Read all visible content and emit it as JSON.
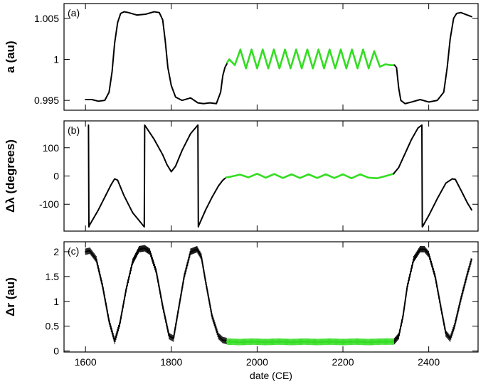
{
  "colors": {
    "main": "#000000",
    "highlight": "#33dd22"
  },
  "chart_data": [
    {
      "type": "line",
      "panel_label": "(a)",
      "ylabel": "a (au)",
      "xlabel": "",
      "xlim": [
        1550,
        2515
      ],
      "ylim": [
        0.9938,
        1.0068
      ],
      "xticks": [
        1600,
        1800,
        2000,
        2200,
        2400
      ],
      "yticks": [
        0.995,
        1,
        1.005
      ],
      "ytick_labels": [
        "0.995",
        "1",
        "1.005"
      ],
      "grid": false,
      "series": [
        {
          "color_key": "main",
          "x": [
            1600,
            1615,
            1630,
            1645,
            1655,
            1662,
            1668,
            1675,
            1682,
            1690,
            1700,
            1720,
            1740,
            1760,
            1772,
            1780,
            1786,
            1792,
            1800,
            1810,
            1825,
            1845,
            1862,
            1875,
            1890,
            1905,
            1915,
            1920,
            1925,
            1930
          ],
          "y": [
            0.9951,
            0.9951,
            0.9949,
            0.995,
            0.996,
            0.9985,
            1.002,
            1.0045,
            1.0056,
            1.0058,
            1.0057,
            1.0054,
            1.0055,
            1.0058,
            1.0057,
            1.0048,
            1.0022,
            0.999,
            0.9968,
            0.9954,
            0.995,
            0.9953,
            0.9947,
            0.9946,
            0.9947,
            0.9946,
            0.996,
            0.998,
            0.999,
            0.9995
          ]
        },
        {
          "color_key": "highlight",
          "x": [
            1930,
            1935,
            1948,
            1961,
            1974,
            1987,
            2000,
            2013,
            2026,
            2039,
            2052,
            2065,
            2078,
            2091,
            2104,
            2117,
            2130,
            2143,
            2156,
            2169,
            2182,
            2195,
            2208,
            2221,
            2234,
            2247,
            2260,
            2273,
            2286,
            2299,
            2310,
            2320
          ],
          "y": [
            0.9996,
            1.0,
            0.9993,
            1.0012,
            0.9989,
            1.0012,
            0.9989,
            1.0012,
            0.9989,
            1.0012,
            0.9989,
            1.0012,
            0.9989,
            1.0012,
            0.9989,
            1.0012,
            0.9989,
            1.0012,
            0.9989,
            1.0012,
            0.9989,
            1.0012,
            0.9989,
            1.0012,
            0.9989,
            1.0012,
            0.9989,
            1.001,
            0.9991,
            0.9994,
            0.9993,
            0.9993
          ]
        },
        {
          "color_key": "main",
          "x": [
            2320,
            2325,
            2330,
            2335,
            2345,
            2360,
            2380,
            2400,
            2420,
            2435,
            2443,
            2450,
            2458,
            2465,
            2475,
            2490,
            2500
          ],
          "y": [
            0.9993,
            0.999,
            0.9965,
            0.995,
            0.9946,
            0.9948,
            0.9951,
            0.9948,
            0.995,
            0.996,
            0.999,
            1.0025,
            1.005,
            1.0056,
            1.0057,
            1.0054,
            1.0052
          ]
        }
      ]
    },
    {
      "type": "line",
      "panel_label": "(b)",
      "ylabel": "Δλ (degrees)",
      "xlabel": "",
      "xlim": [
        1550,
        2515
      ],
      "ylim": [
        -195,
        195
      ],
      "xticks": [
        1600,
        1800,
        2000,
        2200,
        2400
      ],
      "yticks": [
        -100,
        0,
        100
      ],
      "ytick_labels": [
        "-100",
        "0",
        "100"
      ],
      "grid": false,
      "series": [
        {
          "color_key": "main",
          "x": [
            1607,
            1608,
            1609,
            1630,
            1650,
            1660,
            1668,
            1675,
            1690,
            1710,
            1737,
            1738,
            1739,
            1760,
            1780,
            1790,
            1800,
            1810,
            1825,
            1845,
            1862,
            1863,
            1864,
            1880,
            1895,
            1910,
            1920,
            1928
          ],
          "y": [
            180,
            -180,
            -175,
            -120,
            -60,
            -30,
            -10,
            -15,
            -70,
            -130,
            -180,
            180,
            178,
            130,
            75,
            40,
            15,
            35,
            90,
            150,
            180,
            -180,
            -175,
            -120,
            -75,
            -35,
            -15,
            -5
          ]
        },
        {
          "color_key": "highlight",
          "x": [
            1928,
            1940,
            1960,
            1980,
            2000,
            2020,
            2040,
            2060,
            2080,
            2100,
            2120,
            2140,
            2160,
            2180,
            2200,
            2220,
            2240,
            2260,
            2280,
            2300,
            2318
          ],
          "y": [
            -5,
            -2,
            5,
            -5,
            8,
            -6,
            7,
            -7,
            6,
            -7,
            6,
            -7,
            6,
            -7,
            6,
            -8,
            6,
            -6,
            -8,
            0,
            8
          ]
        },
        {
          "color_key": "main",
          "x": [
            2318,
            2330,
            2345,
            2360,
            2375,
            2384,
            2385,
            2386,
            2400,
            2420,
            2440,
            2455,
            2462,
            2475,
            2490,
            2500
          ],
          "y": [
            8,
            30,
            80,
            130,
            170,
            180,
            -180,
            -178,
            -140,
            -80,
            -25,
            -10,
            -12,
            -50,
            -95,
            -120
          ]
        }
      ]
    },
    {
      "type": "line",
      "panel_label": "(c)",
      "ylabel": "Δr (au)",
      "xlabel": "date (CE)",
      "xlim": [
        1550,
        2515
      ],
      "ylim": [
        -0.02,
        2.2
      ],
      "xticks": [
        1600,
        1800,
        2000,
        2200,
        2400
      ],
      "xtick_labels": [
        "1600",
        "1800",
        "2000",
        "2200",
        "2400"
      ],
      "yticks": [
        0,
        0.5,
        1,
        1.5,
        2
      ],
      "ytick_labels": [
        "0",
        "0.5",
        "1",
        "1.5",
        "2"
      ],
      "grid": false,
      "series": [
        {
          "color_key": "main",
          "x": [
            1600,
            1610,
            1625,
            1640,
            1655,
            1668,
            1680,
            1695,
            1710,
            1725,
            1738,
            1750,
            1765,
            1780,
            1795,
            1805,
            1815,
            1830,
            1845,
            1860,
            1870,
            1880,
            1895,
            1910,
            1920,
            1930
          ],
          "y": [
            2.0,
            2.02,
            1.85,
            1.3,
            0.6,
            0.2,
            0.55,
            1.25,
            1.8,
            2.05,
            2.07,
            2.0,
            1.6,
            0.9,
            0.3,
            0.25,
            0.75,
            1.5,
            2.0,
            2.05,
            1.9,
            1.4,
            0.7,
            0.3,
            0.22,
            0.2
          ]
        },
        {
          "color_key": "highlight",
          "x": [
            1930,
            1960,
            1990,
            2020,
            2050,
            2080,
            2110,
            2140,
            2170,
            2200,
            2230,
            2260,
            2290,
            2320
          ],
          "y": [
            0.19,
            0.18,
            0.19,
            0.18,
            0.19,
            0.18,
            0.19,
            0.18,
            0.19,
            0.18,
            0.19,
            0.18,
            0.19,
            0.19
          ]
        },
        {
          "color_key": "main",
          "x": [
            2320,
            2330,
            2340,
            2350,
            2365,
            2380,
            2390,
            2400,
            2415,
            2430,
            2440,
            2450,
            2460,
            2475,
            2490,
            2500
          ],
          "y": [
            0.2,
            0.3,
            0.7,
            1.3,
            1.85,
            2.05,
            2.05,
            1.95,
            1.5,
            0.8,
            0.35,
            0.25,
            0.5,
            1.05,
            1.55,
            1.85
          ]
        }
      ]
    }
  ]
}
